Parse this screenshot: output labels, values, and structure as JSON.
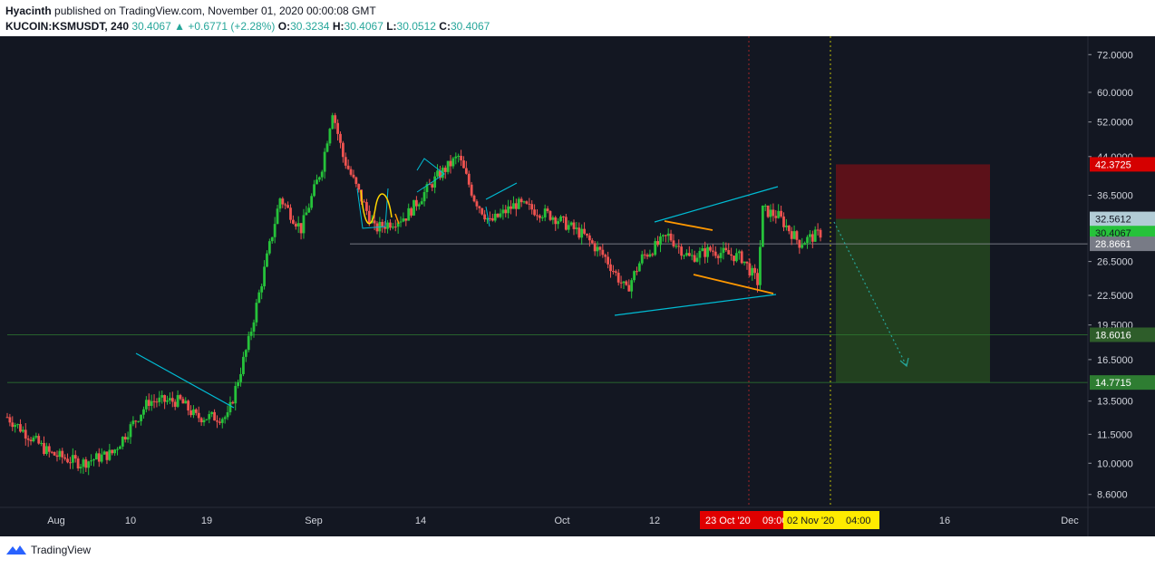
{
  "header": {
    "author": "Hyacinth",
    "published": "published on TradingView.com, November 01, 2020 00:00:08 GMT",
    "symbol": "KUCOIN:KSMUSDT, 240",
    "last": "30.4067",
    "change": "▲ +0.6771 (+2.28%)",
    "o_label": "O:",
    "o": "30.3234",
    "h_label": "H:",
    "h": "30.4067",
    "l_label": "L:",
    "l": "30.0512",
    "c_label": "C:",
    "c": "30.4067"
  },
  "footer": {
    "brand": "TradingView"
  },
  "colors": {
    "background": "#131722",
    "up": "#26a69a",
    "up_candle": "#26c23a",
    "down_candle": "#ef5350",
    "trendline": "#00bcd4",
    "orange": "#ff9800",
    "stop": "#5c1119",
    "target": "#22401f"
  },
  "chart_data": {
    "type": "candlestick",
    "ylim": [
      8,
      80
    ],
    "y_scale": "log",
    "y_ticks": [
      "72.0000",
      "60.0000",
      "52.0000",
      "44.0000",
      "36.5000",
      "30.4067",
      "26.5000",
      "22.5000",
      "19.5000",
      "16.5000",
      "13.5000",
      "11.5000",
      "10.0000",
      "8.6000"
    ],
    "x_ticks": [
      "Aug",
      "10",
      "19",
      "Sep",
      "14",
      "Oct",
      "12",
      "16",
      "Dec"
    ],
    "price_labels": [
      {
        "text": "42.3725",
        "kind": "stop"
      },
      {
        "text": "32.5612",
        "kind": "entry"
      },
      {
        "text": "30.4067",
        "kind": "last"
      },
      {
        "text": "28.8661",
        "kind": "support"
      },
      {
        "text": "18.6016",
        "kind": "target1"
      },
      {
        "text": "14.7715",
        "kind": "target2"
      }
    ],
    "date_labels": [
      {
        "text": "23 Oct '20",
        "kind": "red"
      },
      {
        "text": "09:00",
        "kind": "red"
      },
      {
        "text": "02 Nov '20",
        "kind": "yellow"
      },
      {
        "text": "04:00",
        "kind": "yellow"
      }
    ],
    "keypoints": [
      {
        "t": 0,
        "p": 12.5
      },
      {
        "t": 8,
        "p": 10.5
      },
      {
        "t": 14,
        "p": 10.0
      },
      {
        "t": 20,
        "p": 10.5
      },
      {
        "t": 27,
        "p": 13.5
      },
      {
        "t": 33,
        "p": 13.5
      },
      {
        "t": 36,
        "p": 12.5
      },
      {
        "t": 42,
        "p": 12.5
      },
      {
        "t": 46,
        "p": 18
      },
      {
        "t": 52,
        "p": 36
      },
      {
        "t": 56,
        "p": 31
      },
      {
        "t": 60,
        "p": 42
      },
      {
        "t": 62,
        "p": 55
      },
      {
        "t": 64,
        "p": 44
      },
      {
        "t": 70,
        "p": 31
      },
      {
        "t": 76,
        "p": 33
      },
      {
        "t": 82,
        "p": 40
      },
      {
        "t": 86,
        "p": 44
      },
      {
        "t": 89,
        "p": 36
      },
      {
        "t": 92,
        "p": 32
      },
      {
        "t": 97,
        "p": 35
      },
      {
        "t": 104,
        "p": 33
      },
      {
        "t": 110,
        "p": 30
      },
      {
        "t": 114,
        "p": 27
      },
      {
        "t": 118,
        "p": 23
      },
      {
        "t": 121,
        "p": 27
      },
      {
        "t": 126,
        "p": 30
      },
      {
        "t": 130,
        "p": 27
      },
      {
        "t": 134,
        "p": 28
      },
      {
        "t": 140,
        "p": 27
      },
      {
        "t": 143,
        "p": 24
      },
      {
        "t": 144,
        "p": 34
      },
      {
        "t": 147,
        "p": 33
      },
      {
        "t": 151,
        "p": 29
      },
      {
        "t": 155,
        "p": 30.4
      }
    ],
    "trade": {
      "entry": 32.5612,
      "stop": 42.3725,
      "target": 14.7715,
      "support": 28.8661
    }
  }
}
